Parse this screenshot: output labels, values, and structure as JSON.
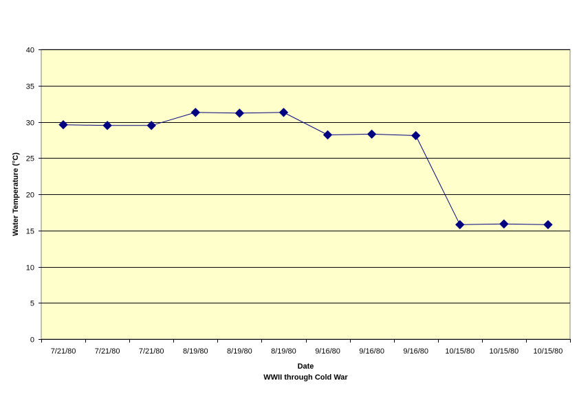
{
  "chart_data": {
    "type": "line",
    "categories": [
      "7/21/80",
      "7/21/80",
      "7/21/80",
      "8/19/80",
      "8/19/80",
      "8/19/80",
      "9/16/80",
      "9/16/80",
      "9/16/80",
      "10/15/80",
      "10/15/80",
      "10/15/80"
    ],
    "series": [
      {
        "values": [
          29.6,
          29.5,
          29.5,
          31.3,
          31.2,
          31.3,
          28.2,
          28.3,
          28.1,
          15.8,
          15.9,
          15.8
        ]
      }
    ],
    "xlabel": "Date",
    "xlabel2": "WWII through Cold War",
    "ylabel": "Water Temperature (°C)",
    "ylim": [
      0,
      40
    ],
    "yticks": [
      0,
      5,
      10,
      15,
      20,
      25,
      30,
      35,
      40
    ],
    "grid": "horizontal",
    "marker": "diamond",
    "colors": {
      "plot_background": "#FFFFCC",
      "series": "#000080",
      "grid": "#000000",
      "axis": "#808080"
    }
  }
}
